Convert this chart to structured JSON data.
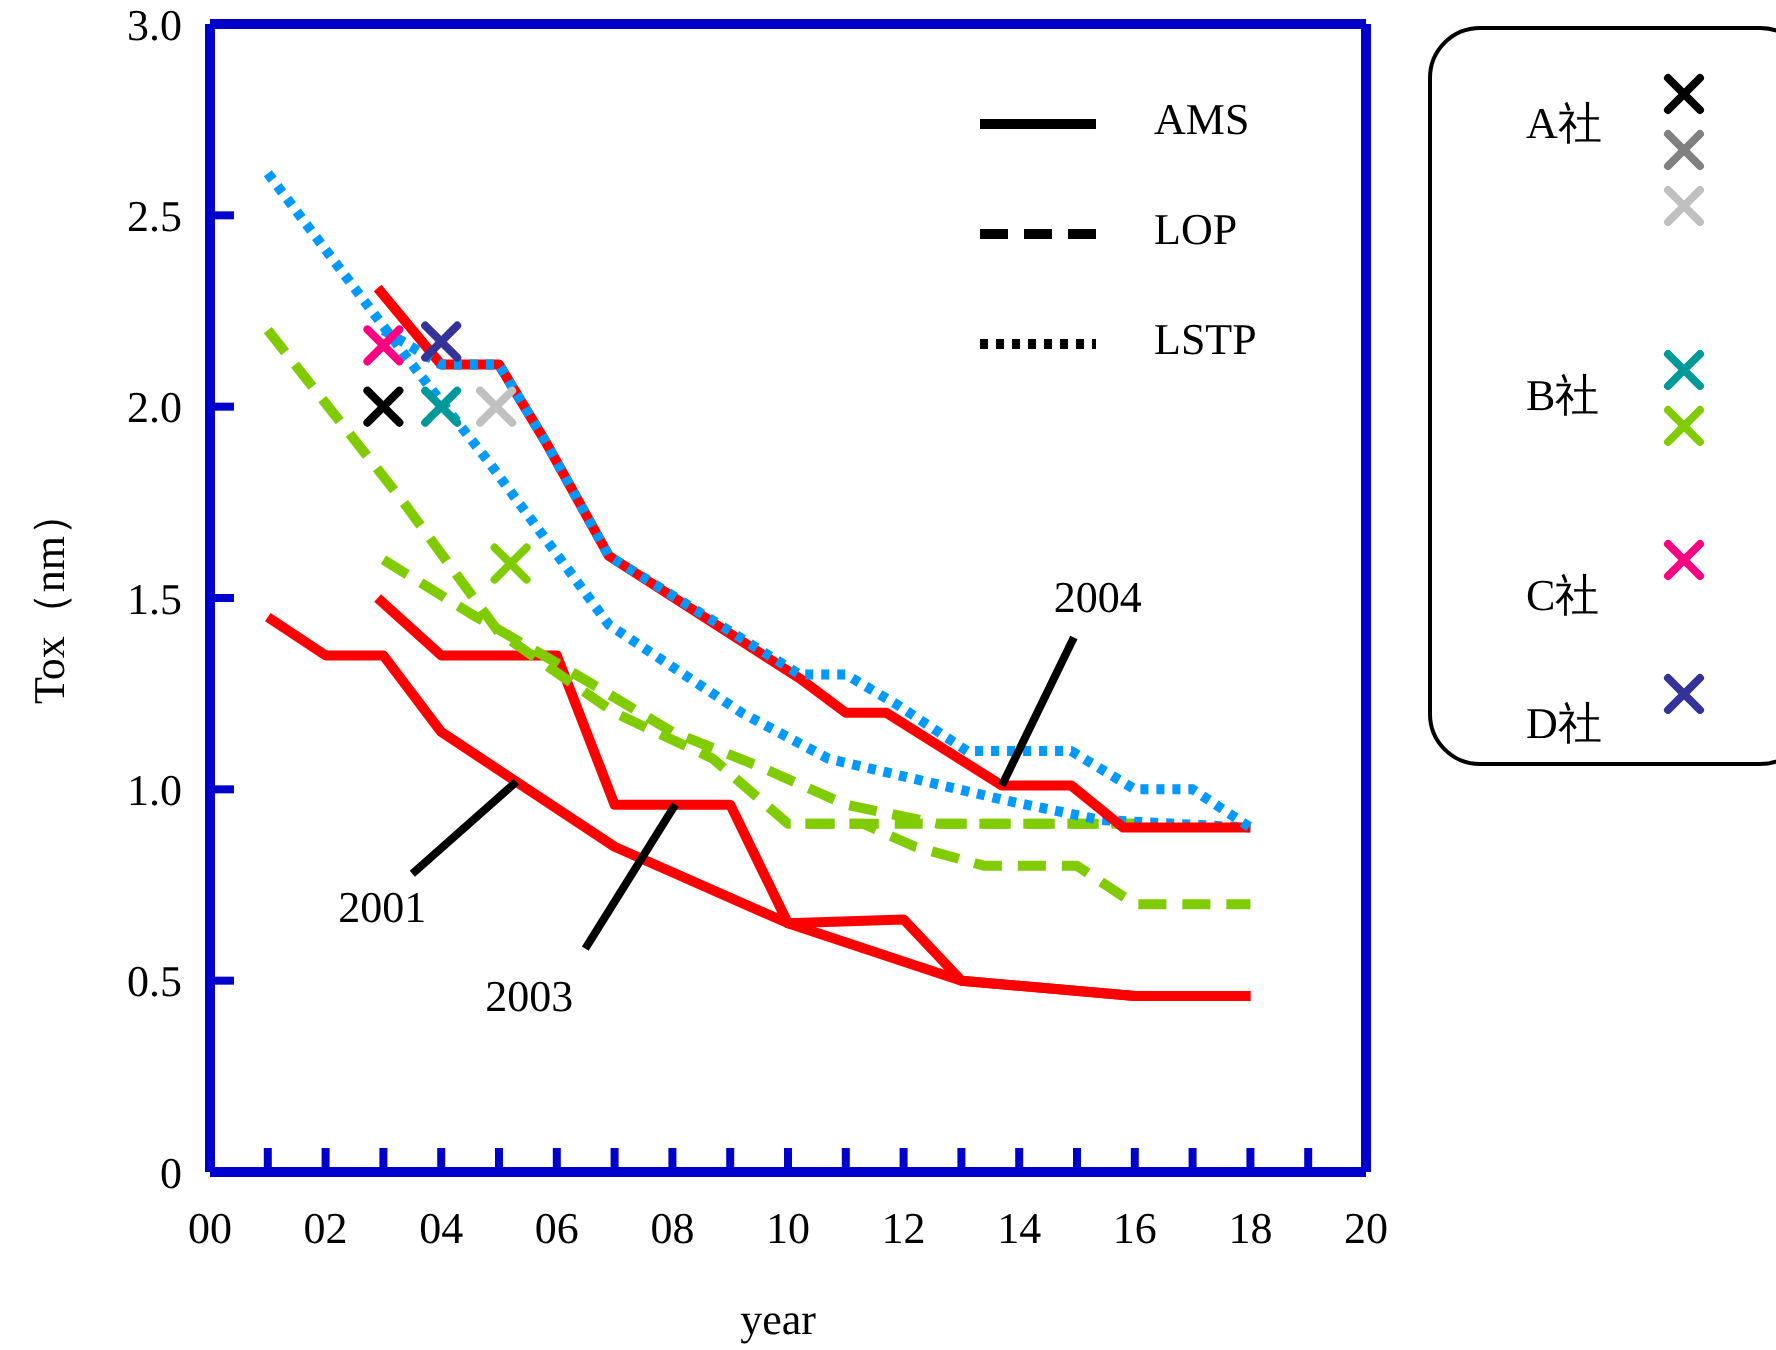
{
  "chart_data": {
    "type": "line",
    "xlabel": "year",
    "ylabel": "Tox（nm）",
    "xlim": [
      0,
      20
    ],
    "ylim": [
      0,
      3
    ],
    "xticks": [
      {
        "value": 0,
        "label": "00"
      },
      {
        "value": 1,
        "label": null
      },
      {
        "value": 2,
        "label": "02"
      },
      {
        "value": 3,
        "label": null
      },
      {
        "value": 4,
        "label": "04"
      },
      {
        "value": 5,
        "label": null
      },
      {
        "value": 6,
        "label": "06"
      },
      {
        "value": 7,
        "label": null
      },
      {
        "value": 8,
        "label": "08"
      },
      {
        "value": 9,
        "label": null
      },
      {
        "value": 10,
        "label": "10"
      },
      {
        "value": 11,
        "label": null
      },
      {
        "value": 12,
        "label": "12"
      },
      {
        "value": 13,
        "label": null
      },
      {
        "value": 14,
        "label": "14"
      },
      {
        "value": 15,
        "label": null
      },
      {
        "value": 16,
        "label": "16"
      },
      {
        "value": 17,
        "label": null
      },
      {
        "value": 18,
        "label": "18"
      },
      {
        "value": 19,
        "label": null
      },
      {
        "value": 20,
        "label": "20"
      }
    ],
    "yticks": [
      0,
      0.5,
      {
        "value": 1,
        "label": "1.0"
      },
      1.5,
      {
        "value": 2,
        "label": "2.0"
      },
      2.5,
      {
        "value": 3,
        "label": "3.0"
      }
    ],
    "grid": false,
    "series": [
      {
        "line_style": "solid",
        "marker": "none",
        "color": "#ff0000",
        "x": [
          1,
          2,
          3,
          4,
          7,
          10,
          13,
          16,
          18
        ],
        "values": [
          1.45,
          1.35,
          1.35,
          1.15,
          0.85,
          0.65,
          0.5,
          0.46,
          0.46
        ]
      },
      {
        "line_style": "solid",
        "marker": "none",
        "color": "#ff0000",
        "x": [
          2.9,
          4,
          6,
          7,
          9,
          10,
          12,
          13,
          16,
          18
        ],
        "values": [
          1.5,
          1.35,
          1.35,
          0.96,
          0.96,
          0.65,
          0.66,
          0.5,
          0.46,
          0.46
        ]
      },
      {
        "line_style": "dashed",
        "marker": "none",
        "color": "#80cc00",
        "x": [
          1,
          3.3,
          5,
          7,
          8.7,
          10,
          12,
          14,
          16
        ],
        "values": [
          2.2,
          1.76,
          1.41,
          1.2,
          1.08,
          0.91,
          0.91,
          0.91,
          0.91
        ]
      },
      {
        "line_style": "dashed",
        "marker": "none",
        "color": "#80cc00",
        "x": [
          3,
          4.5,
          6,
          8,
          9.5,
          11,
          12.6,
          16
        ],
        "values": [
          1.6,
          1.46,
          1.33,
          1.15,
          1.06,
          0.96,
          0.91,
          0.91
        ]
      },
      {
        "line_style": "dashed",
        "marker": "none",
        "color": "#80cc00",
        "x": [
          10.3,
          11.3,
          12.2,
          13.4,
          15,
          16,
          18
        ],
        "values": [
          0.91,
          0.91,
          0.85,
          0.8,
          0.8,
          0.7,
          0.7
        ]
      },
      {
        "line_style": "dotted",
        "marker": "none",
        "color": "#0099ff",
        "x": [
          1,
          3.6,
          4.8,
          6.9,
          9.2,
          10.7,
          13.8,
          15.4,
          18
        ],
        "values": [
          2.61,
          2.09,
          1.86,
          1.43,
          1.2,
          1.08,
          0.97,
          0.92,
          0.9
        ]
      },
      {
        "line_style": "solid",
        "marker": "none",
        "color": "#ff0000",
        "x": [
          2.9,
          4,
          5,
          5.8,
          6.9,
          10.2,
          11,
          11.7,
          13.7,
          14.9,
          15.8,
          18
        ],
        "values": [
          2.31,
          2.11,
          2.11,
          1.91,
          1.61,
          1.29,
          1.2,
          1.2,
          1.01,
          1.01,
          0.9,
          0.9
        ]
      },
      {
        "line_style": "dotted",
        "marker": "none",
        "color": "#0099ff",
        "x": [
          3,
          4,
          5,
          5.8,
          6.9,
          10.2,
          11,
          11.9,
          13.1,
          14.9,
          16,
          17,
          18
        ],
        "values": [
          2.2,
          2.11,
          2.11,
          1.91,
          1.61,
          1.3,
          1.3,
          1.22,
          1.1,
          1.1,
          1.0,
          1.0,
          0.9
        ]
      },
      {
        "type": "scatter",
        "marker": "cross",
        "color": "#000000",
        "x": [
          3
        ],
        "values": [
          2.0
        ]
      },
      {
        "type": "scatter",
        "marker": "cross",
        "color": "#c0c0c0",
        "x": [
          4.95
        ],
        "values": [
          2.0
        ]
      },
      {
        "type": "scatter",
        "marker": "cross",
        "color": "#009999",
        "x": [
          4
        ],
        "values": [
          2.0
        ]
      },
      {
        "type": "scatter",
        "marker": "cross",
        "color": "#80cc00",
        "x": [
          5.2
        ],
        "values": [
          1.59
        ]
      },
      {
        "type": "scatter",
        "marker": "cross",
        "color": "#ff0080",
        "x": [
          3
        ],
        "values": [
          2.16
        ]
      },
      {
        "type": "scatter",
        "marker": "cross",
        "color": "#333399",
        "x": [
          4
        ],
        "values": [
          2.17
        ]
      }
    ],
    "annotations": [
      {
        "text": "2001",
        "x": 5.3,
        "y": 1.02
      },
      {
        "text": "2003",
        "x": 8.05,
        "y": 0.96
      },
      {
        "text": "2004",
        "x": 13.7,
        "y": 1.01
      },
      "AMS",
      "LOP",
      "LSTP",
      "A社",
      "B社",
      "C社",
      "D社"
    ]
  }
}
